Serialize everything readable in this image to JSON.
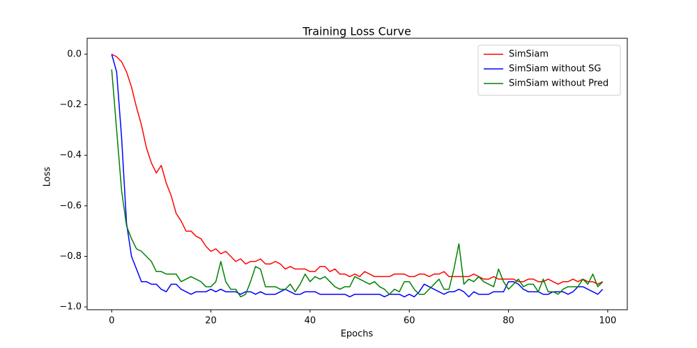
{
  "chart_data": {
    "type": "line",
    "title": "Training Loss Curve",
    "xlabel": "Epochs",
    "ylabel": "Loss",
    "x": [
      0,
      1,
      2,
      3,
      4,
      5,
      6,
      7,
      8,
      9,
      10,
      11,
      12,
      13,
      14,
      15,
      16,
      17,
      18,
      19,
      20,
      21,
      22,
      23,
      24,
      25,
      26,
      27,
      28,
      29,
      30,
      31,
      32,
      33,
      34,
      35,
      36,
      37,
      38,
      39,
      40,
      41,
      42,
      43,
      44,
      45,
      46,
      47,
      48,
      49,
      50,
      51,
      52,
      53,
      54,
      55,
      56,
      57,
      58,
      59,
      60,
      61,
      62,
      63,
      64,
      65,
      66,
      67,
      68,
      69,
      70,
      71,
      72,
      73,
      74,
      75,
      76,
      77,
      78,
      79,
      80,
      81,
      82,
      83,
      84,
      85,
      86,
      87,
      88,
      89,
      90,
      91,
      92,
      93,
      94,
      95,
      96,
      97,
      98,
      99
    ],
    "series": [
      {
        "name": "SimSiam",
        "color": "#ff0000",
        "values": [
          0.0,
          -0.01,
          -0.03,
          -0.07,
          -0.13,
          -0.21,
          -0.28,
          -0.37,
          -0.43,
          -0.47,
          -0.44,
          -0.51,
          -0.56,
          -0.63,
          -0.66,
          -0.7,
          -0.7,
          -0.72,
          -0.73,
          -0.76,
          -0.78,
          -0.77,
          -0.79,
          -0.78,
          -0.8,
          -0.82,
          -0.81,
          -0.83,
          -0.82,
          -0.82,
          -0.81,
          -0.83,
          -0.83,
          -0.82,
          -0.83,
          -0.85,
          -0.84,
          -0.85,
          -0.85,
          -0.85,
          -0.86,
          -0.86,
          -0.84,
          -0.84,
          -0.86,
          -0.85,
          -0.87,
          -0.87,
          -0.88,
          -0.87,
          -0.88,
          -0.86,
          -0.87,
          -0.88,
          -0.88,
          -0.88,
          -0.88,
          -0.87,
          -0.87,
          -0.87,
          -0.88,
          -0.88,
          -0.87,
          -0.87,
          -0.88,
          -0.87,
          -0.87,
          -0.86,
          -0.88,
          -0.88,
          -0.88,
          -0.88,
          -0.88,
          -0.87,
          -0.88,
          -0.89,
          -0.89,
          -0.88,
          -0.89,
          -0.89,
          -0.89,
          -0.89,
          -0.9,
          -0.9,
          -0.89,
          -0.89,
          -0.9,
          -0.9,
          -0.89,
          -0.9,
          -0.91,
          -0.9,
          -0.9,
          -0.89,
          -0.9,
          -0.89,
          -0.9,
          -0.9,
          -0.91,
          -0.9
        ]
      },
      {
        "name": "SimSiam without SG",
        "color": "#0000ff",
        "values": [
          0.0,
          -0.07,
          -0.33,
          -0.67,
          -0.8,
          -0.85,
          -0.9,
          -0.9,
          -0.91,
          -0.91,
          -0.93,
          -0.94,
          -0.91,
          -0.91,
          -0.93,
          -0.94,
          -0.95,
          -0.94,
          -0.94,
          -0.94,
          -0.93,
          -0.94,
          -0.93,
          -0.94,
          -0.94,
          -0.94,
          -0.95,
          -0.94,
          -0.94,
          -0.95,
          -0.94,
          -0.95,
          -0.95,
          -0.95,
          -0.94,
          -0.93,
          -0.94,
          -0.95,
          -0.95,
          -0.94,
          -0.94,
          -0.94,
          -0.95,
          -0.95,
          -0.95,
          -0.95,
          -0.95,
          -0.95,
          -0.96,
          -0.95,
          -0.95,
          -0.95,
          -0.95,
          -0.95,
          -0.95,
          -0.96,
          -0.95,
          -0.95,
          -0.95,
          -0.96,
          -0.95,
          -0.96,
          -0.94,
          -0.91,
          -0.92,
          -0.93,
          -0.94,
          -0.95,
          -0.94,
          -0.94,
          -0.93,
          -0.94,
          -0.96,
          -0.94,
          -0.95,
          -0.95,
          -0.95,
          -0.94,
          -0.94,
          -0.94,
          -0.9,
          -0.9,
          -0.91,
          -0.93,
          -0.94,
          -0.94,
          -0.94,
          -0.95,
          -0.95,
          -0.94,
          -0.94,
          -0.94,
          -0.95,
          -0.94,
          -0.92,
          -0.92,
          -0.93,
          -0.94,
          -0.95,
          -0.93
        ]
      },
      {
        "name": "SimSiam without Pred",
        "color": "#008000",
        "values": [
          -0.06,
          -0.3,
          -0.54,
          -0.68,
          -0.73,
          -0.77,
          -0.78,
          -0.8,
          -0.82,
          -0.86,
          -0.86,
          -0.87,
          -0.87,
          -0.87,
          -0.9,
          -0.89,
          -0.88,
          -0.89,
          -0.9,
          -0.92,
          -0.92,
          -0.9,
          -0.82,
          -0.9,
          -0.93,
          -0.93,
          -0.96,
          -0.95,
          -0.9,
          -0.84,
          -0.85,
          -0.92,
          -0.92,
          -0.92,
          -0.93,
          -0.93,
          -0.91,
          -0.94,
          -0.91,
          -0.87,
          -0.9,
          -0.88,
          -0.89,
          -0.88,
          -0.9,
          -0.92,
          -0.93,
          -0.92,
          -0.92,
          -0.88,
          -0.89,
          -0.9,
          -0.91,
          -0.9,
          -0.92,
          -0.93,
          -0.95,
          -0.93,
          -0.94,
          -0.9,
          -0.9,
          -0.93,
          -0.95,
          -0.95,
          -0.93,
          -0.91,
          -0.89,
          -0.93,
          -0.93,
          -0.85,
          -0.75,
          -0.91,
          -0.89,
          -0.9,
          -0.88,
          -0.9,
          -0.91,
          -0.92,
          -0.85,
          -0.9,
          -0.93,
          -0.91,
          -0.89,
          -0.92,
          -0.91,
          -0.91,
          -0.94,
          -0.89,
          -0.94,
          -0.94,
          -0.95,
          -0.93,
          -0.92,
          -0.92,
          -0.92,
          -0.89,
          -0.91,
          -0.87,
          -0.92,
          -0.9
        ]
      }
    ],
    "xlim": [
      -4.95,
      103.95
    ],
    "ylim": [
      -1.011,
      0.063
    ],
    "xticks": [
      0,
      20,
      40,
      60,
      80,
      100
    ],
    "yticks": [
      {
        "value": -1.0,
        "label": "−1.0"
      },
      {
        "value": -0.8,
        "label": "−0.8"
      },
      {
        "value": -0.6,
        "label": "−0.6"
      },
      {
        "value": -0.4,
        "label": "−0.4"
      },
      {
        "value": -0.2,
        "label": "−0.2"
      },
      {
        "value": 0.0,
        "label": "0.0"
      }
    ],
    "legend": "upper right"
  }
}
